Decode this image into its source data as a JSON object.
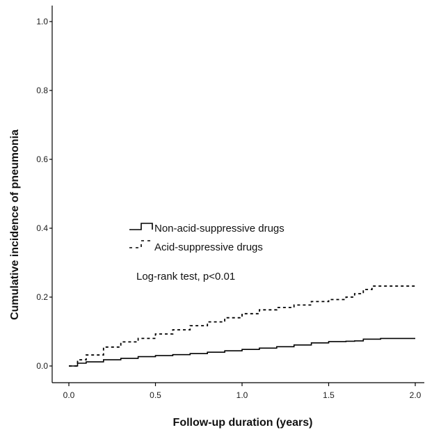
{
  "chart_data": {
    "type": "line",
    "title": "",
    "xlabel": "Follow-up duration (years)",
    "ylabel": "Cumulative incidence of pneumonia",
    "xlim": [
      0.0,
      2.0
    ],
    "ylim": [
      0.0,
      1.0
    ],
    "x_ticks": [
      "0.0",
      "0.5",
      "1.0",
      "1.5",
      "2.0"
    ],
    "y_ticks": [
      "0.0",
      "0.2",
      "0.4",
      "0.6",
      "0.8",
      "1.0"
    ],
    "grid": false,
    "legend_position": "center-left",
    "series": [
      {
        "name": "Non-acid-suppressive drugs",
        "style": "solid",
        "color": "#000000",
        "x": [
          0.0,
          0.05,
          0.1,
          0.2,
          0.3,
          0.4,
          0.5,
          0.6,
          0.7,
          0.8,
          0.9,
          1.0,
          1.1,
          1.2,
          1.3,
          1.4,
          1.5,
          1.6,
          1.65,
          1.7,
          1.8,
          1.9,
          2.0
        ],
        "y": [
          0.0,
          0.008,
          0.012,
          0.018,
          0.022,
          0.027,
          0.03,
          0.033,
          0.036,
          0.04,
          0.044,
          0.048,
          0.052,
          0.056,
          0.061,
          0.067,
          0.071,
          0.072,
          0.073,
          0.078,
          0.08,
          0.08,
          0.08
        ]
      },
      {
        "name": "Acid-suppressive drugs",
        "style": "dashed",
        "color": "#000000",
        "x": [
          0.0,
          0.05,
          0.1,
          0.2,
          0.3,
          0.4,
          0.5,
          0.6,
          0.7,
          0.8,
          0.9,
          1.0,
          1.1,
          1.2,
          1.3,
          1.4,
          1.5,
          1.6,
          1.65,
          1.7,
          1.75,
          1.8,
          1.9,
          2.0
        ],
        "y": [
          0.0,
          0.018,
          0.032,
          0.055,
          0.07,
          0.08,
          0.093,
          0.105,
          0.117,
          0.128,
          0.14,
          0.152,
          0.163,
          0.17,
          0.177,
          0.187,
          0.193,
          0.2,
          0.21,
          0.222,
          0.232,
          0.232,
          0.232,
          0.232
        ]
      }
    ],
    "annotations": [
      "Log-rank test, p<0.01"
    ]
  }
}
